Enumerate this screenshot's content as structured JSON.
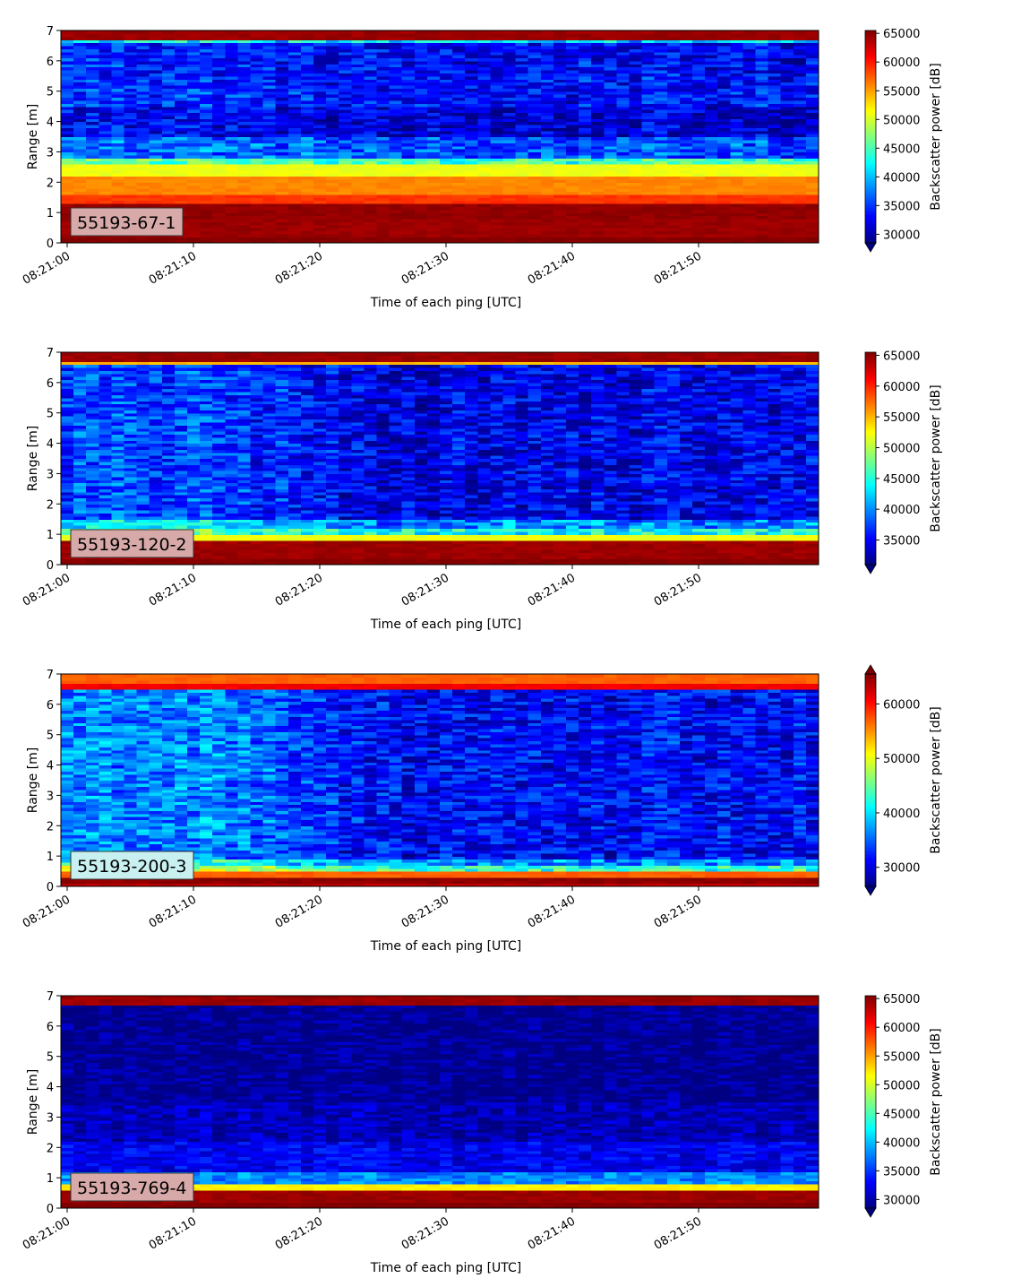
{
  "chart_data": [
    {
      "type": "heatmap",
      "label": "55193-67-1",
      "label_box_color": "#d8a9a9",
      "xlabel": "Time of each ping [UTC]",
      "ylabel": "Range [m]",
      "xticks": [
        "08:21:00",
        "08:21:10",
        "08:21:20",
        "08:21:30",
        "08:21:40",
        "08:21:50"
      ],
      "x_range_seconds": [
        0,
        59
      ],
      "yticks": [
        0,
        1,
        2,
        3,
        4,
        5,
        6,
        7
      ],
      "ylim": [
        0,
        7
      ],
      "colorbar": {
        "label": "Backscatter power [dB]",
        "ticks": [
          30000,
          35000,
          40000,
          45000,
          50000,
          55000,
          60000,
          65000
        ],
        "range": [
          28500,
          65500
        ],
        "extend": "min",
        "colormap": "jet"
      },
      "profile": [
        {
          "r": [
            0.0,
            0.25
          ],
          "v": 65500
        },
        {
          "r": [
            0.25,
            0.8
          ],
          "v": 64500
        },
        {
          "r": [
            0.8,
            1.3
          ],
          "v": 64800
        },
        {
          "r": [
            1.3,
            1.6
          ],
          "v": 59000
        },
        {
          "r": [
            1.6,
            2.2
          ],
          "v": 56000
        },
        {
          "r": [
            2.2,
            2.6
          ],
          "v": 51000
        },
        {
          "r": [
            2.6,
            2.85
          ],
          "v": 46000
        },
        {
          "r": [
            2.85,
            3.5
          ],
          "v": 37500
        },
        {
          "r": [
            3.5,
            4.5
          ],
          "v": 33000
        },
        {
          "r": [
            4.5,
            5.5
          ],
          "v": 35000
        },
        {
          "r": [
            5.5,
            6.6
          ],
          "v": 34500
        },
        {
          "r": [
            6.6,
            6.75
          ],
          "v": 42000
        },
        {
          "r": [
            6.75,
            7.0
          ],
          "v": 64500
        }
      ],
      "noise_amplitude": 3500,
      "late_shift": -1500
    },
    {
      "type": "heatmap",
      "label": "55193-120-2",
      "label_box_color": "#d8a9a9",
      "xlabel": "Time of each ping [UTC]",
      "ylabel": "Range [m]",
      "xticks": [
        "08:21:00",
        "08:21:10",
        "08:21:20",
        "08:21:30",
        "08:21:40",
        "08:21:50"
      ],
      "x_range_seconds": [
        0,
        59
      ],
      "yticks": [
        0,
        1,
        2,
        3,
        4,
        5,
        6,
        7
      ],
      "ylim": [
        0,
        7
      ],
      "colorbar": {
        "label": "Backscatter power [dB]",
        "ticks": [
          35000,
          40000,
          45000,
          50000,
          55000,
          60000,
          65000
        ],
        "range": [
          31000,
          65500
        ],
        "extend": "min",
        "colormap": "jet"
      },
      "profile": [
        {
          "r": [
            0.0,
            0.2
          ],
          "v": 65500
        },
        {
          "r": [
            0.2,
            0.8
          ],
          "v": 64500
        },
        {
          "r": [
            0.8,
            1.0
          ],
          "v": 52000
        },
        {
          "r": [
            1.0,
            1.25
          ],
          "v": 47000
        },
        {
          "r": [
            1.25,
            1.55
          ],
          "v": 43000
        },
        {
          "r": [
            1.55,
            6.65
          ],
          "v": 37500
        },
        {
          "r": [
            6.65,
            6.72
          ],
          "v": 55000
        },
        {
          "r": [
            6.72,
            7.0
          ],
          "v": 64500
        }
      ],
      "noise_amplitude": 3500,
      "late_shift": -3000
    },
    {
      "type": "heatmap",
      "label": "55193-200-3",
      "label_box_color": "#c8f0f0",
      "xlabel": "Time of each ping [UTC]",
      "ylabel": "Range [m]",
      "xticks": [
        "08:21:00",
        "08:21:10",
        "08:21:20",
        "08:21:30",
        "08:21:40",
        "08:21:50"
      ],
      "x_range_seconds": [
        0,
        59
      ],
      "yticks": [
        0,
        1,
        2,
        3,
        4,
        5,
        6,
        7
      ],
      "ylim": [
        0,
        7
      ],
      "colorbar": {
        "label": "Backscatter power [dB]",
        "ticks": [
          30000,
          40000,
          50000,
          60000
        ],
        "range": [
          26500,
          65500
        ],
        "extend": "both",
        "colormap": "jet"
      },
      "profile": [
        {
          "r": [
            0.0,
            0.15
          ],
          "v": 63000
        },
        {
          "r": [
            0.15,
            0.35
          ],
          "v": 65000
        },
        {
          "r": [
            0.35,
            0.5
          ],
          "v": 57000
        },
        {
          "r": [
            0.5,
            0.7
          ],
          "v": 48000
        },
        {
          "r": [
            0.7,
            0.9
          ],
          "v": 42000
        },
        {
          "r": [
            0.9,
            6.55
          ],
          "v": 36500
        },
        {
          "r": [
            6.55,
            6.7
          ],
          "v": 61000
        },
        {
          "r": [
            6.7,
            7.0
          ],
          "v": 57000
        }
      ],
      "noise_amplitude": 4000,
      "late_shift": -5000
    },
    {
      "type": "heatmap",
      "label": "55193-769-4",
      "label_box_color": "#d8a9a9",
      "xlabel": "Time of each ping [UTC]",
      "ylabel": "Range [m]",
      "xticks": [
        "08:21:00",
        "08:21:10",
        "08:21:20",
        "08:21:30",
        "08:21:40",
        "08:21:50"
      ],
      "x_range_seconds": [
        0,
        59
      ],
      "yticks": [
        0,
        1,
        2,
        3,
        4,
        5,
        6,
        7
      ],
      "ylim": [
        0,
        7
      ],
      "colorbar": {
        "label": "Backscatter power [dB]",
        "ticks": [
          30000,
          35000,
          40000,
          45000,
          50000,
          55000,
          60000,
          65000
        ],
        "range": [
          28500,
          65500
        ],
        "extend": "min",
        "colormap": "jet"
      },
      "profile": [
        {
          "r": [
            0.0,
            0.2
          ],
          "v": 65500
        },
        {
          "r": [
            0.2,
            0.6
          ],
          "v": 64500
        },
        {
          "r": [
            0.6,
            0.85
          ],
          "v": 52000
        },
        {
          "r": [
            0.85,
            1.2
          ],
          "v": 38000
        },
        {
          "r": [
            1.2,
            2.2
          ],
          "v": 32500
        },
        {
          "r": [
            2.2,
            3.5
          ],
          "v": 30500
        },
        {
          "r": [
            3.5,
            6.7
          ],
          "v": 29000
        },
        {
          "r": [
            6.7,
            6.75
          ],
          "v": 38000
        },
        {
          "r": [
            6.75,
            7.0
          ],
          "v": 64500
        }
      ],
      "noise_amplitude": 2200,
      "late_shift": 0
    }
  ]
}
